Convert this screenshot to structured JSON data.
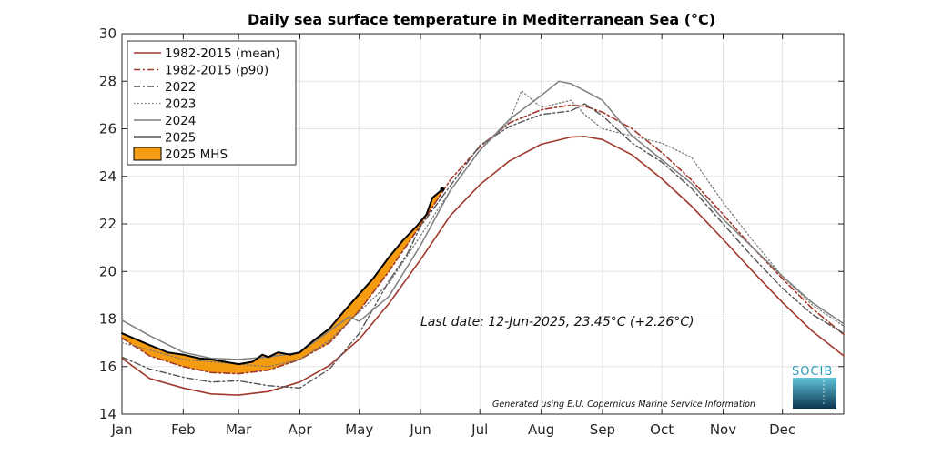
{
  "chart_data": {
    "type": "line",
    "title": "Daily sea surface temperature in Mediterranean Sea (°C)",
    "xlabel": "",
    "ylabel": "",
    "ylim": [
      14,
      30
    ],
    "yticks": [
      14,
      16,
      18,
      20,
      22,
      24,
      26,
      28,
      30
    ],
    "xlim": [
      1,
      366
    ],
    "xticks": [
      {
        "day": 1,
        "label": "Jan"
      },
      {
        "day": 32,
        "label": "Feb"
      },
      {
        "day": 60,
        "label": "Mar"
      },
      {
        "day": 91,
        "label": "Apr"
      },
      {
        "day": 121,
        "label": "May"
      },
      {
        "day": 152,
        "label": "Jun"
      },
      {
        "day": 182,
        "label": "Jul"
      },
      {
        "day": 213,
        "label": "Aug"
      },
      {
        "day": 244,
        "label": "Sep"
      },
      {
        "day": 274,
        "label": "Oct"
      },
      {
        "day": 305,
        "label": "Nov"
      },
      {
        "day": 335,
        "label": "Dec"
      }
    ],
    "grid": true,
    "legend_position": "top-left",
    "series": [
      {
        "name": "1982-2015 (mean)",
        "color": "#a0392c",
        "style": "solid",
        "x": [
          1,
          15,
          32,
          46,
          60,
          75,
          91,
          106,
          121,
          136,
          152,
          167,
          182,
          197,
          213,
          228,
          235,
          244,
          259,
          274,
          289,
          305,
          320,
          335,
          350,
          366
        ],
        "y": [
          16.35,
          15.5,
          15.1,
          14.85,
          14.8,
          14.95,
          15.35,
          16.05,
          17.15,
          18.65,
          20.5,
          22.35,
          23.65,
          24.65,
          25.35,
          25.65,
          25.68,
          25.55,
          24.9,
          23.9,
          22.75,
          21.35,
          20.0,
          18.7,
          17.5,
          16.45
        ]
      },
      {
        "name": "1982-2015 (p90)",
        "color": "#a0392c",
        "style": "dashdot",
        "x": [
          1,
          15,
          32,
          46,
          60,
          75,
          91,
          106,
          121,
          136,
          152,
          167,
          182,
          197,
          213,
          228,
          235,
          244,
          259,
          274,
          289,
          305,
          320,
          335,
          350,
          366
        ],
        "y": [
          17.2,
          16.45,
          16.0,
          15.75,
          15.7,
          15.85,
          16.3,
          17.0,
          18.35,
          20.0,
          21.95,
          23.85,
          25.25,
          26.25,
          26.8,
          27.0,
          26.95,
          26.7,
          26.0,
          25.0,
          23.85,
          22.4,
          21.0,
          19.7,
          18.45,
          17.35
        ]
      },
      {
        "name": "2022",
        "color": "#555555",
        "style": "dashdot",
        "x": [
          1,
          15,
          32,
          46,
          60,
          75,
          91,
          106,
          121,
          136,
          145,
          152,
          167,
          182,
          197,
          213,
          228,
          235,
          244,
          259,
          274,
          289,
          305,
          320,
          335,
          350,
          366
        ],
        "y": [
          16.4,
          15.9,
          15.55,
          15.35,
          15.4,
          15.2,
          15.1,
          15.9,
          17.4,
          19.6,
          20.7,
          21.9,
          23.6,
          25.3,
          26.1,
          26.6,
          26.75,
          27.05,
          26.55,
          25.4,
          24.6,
          23.5,
          22.0,
          20.6,
          19.3,
          18.2,
          17.4
        ]
      },
      {
        "name": "2023",
        "color": "#777777",
        "style": "dotted",
        "x": [
          1,
          15,
          32,
          46,
          60,
          75,
          91,
          106,
          121,
          136,
          152,
          167,
          182,
          197,
          203,
          213,
          228,
          235,
          244,
          259,
          274,
          289,
          305,
          320,
          335,
          350,
          366
        ],
        "y": [
          17.0,
          16.7,
          16.3,
          16.2,
          16.1,
          16.0,
          16.3,
          17.1,
          18.3,
          19.5,
          21.5,
          23.4,
          25.1,
          26.3,
          27.6,
          26.9,
          27.2,
          26.6,
          26.0,
          25.7,
          25.4,
          24.8,
          22.9,
          21.3,
          19.8,
          18.6,
          17.7
        ]
      },
      {
        "name": "2024",
        "color": "#808080",
        "style": "solid",
        "x": [
          1,
          15,
          32,
          46,
          60,
          75,
          91,
          106,
          116,
          121,
          136,
          152,
          167,
          182,
          197,
          213,
          222,
          228,
          235,
          244,
          259,
          274,
          289,
          305,
          320,
          335,
          350,
          366
        ],
        "y": [
          17.95,
          17.3,
          16.6,
          16.35,
          16.3,
          16.4,
          16.6,
          17.5,
          18.1,
          17.9,
          18.95,
          21.1,
          23.4,
          25.1,
          26.4,
          27.4,
          28.0,
          27.9,
          27.6,
          27.2,
          25.7,
          24.7,
          23.7,
          22.2,
          21.0,
          19.8,
          18.7,
          17.8
        ]
      },
      {
        "name": "2025",
        "color": "#000000",
        "style": "solid",
        "x": [
          1,
          8,
          15,
          24,
          32,
          40,
          46,
          53,
          60,
          67,
          72,
          75,
          80,
          86,
          91,
          98,
          106,
          113,
          121,
          128,
          136,
          143,
          150,
          155,
          158,
          163
        ],
        "y": [
          17.4,
          17.15,
          16.9,
          16.6,
          16.5,
          16.35,
          16.3,
          16.2,
          16.1,
          16.2,
          16.5,
          16.4,
          16.6,
          16.5,
          16.6,
          17.1,
          17.6,
          18.3,
          19.05,
          19.7,
          20.6,
          21.3,
          21.9,
          22.4,
          23.1,
          23.45
        ]
      }
    ],
    "shaded_area": {
      "name": "2025 MHS",
      "color": "#f59b0f",
      "description_ref": "between 1982-2015 (p90) and 2025 where 2025 exceeds p90"
    },
    "annotation": "Last date: 12-Jun-2025, 23.45°C (+2.26°C)",
    "credit": "Generated using E.U. Copernicus Marine Service Information",
    "logo": "SOCIB"
  }
}
